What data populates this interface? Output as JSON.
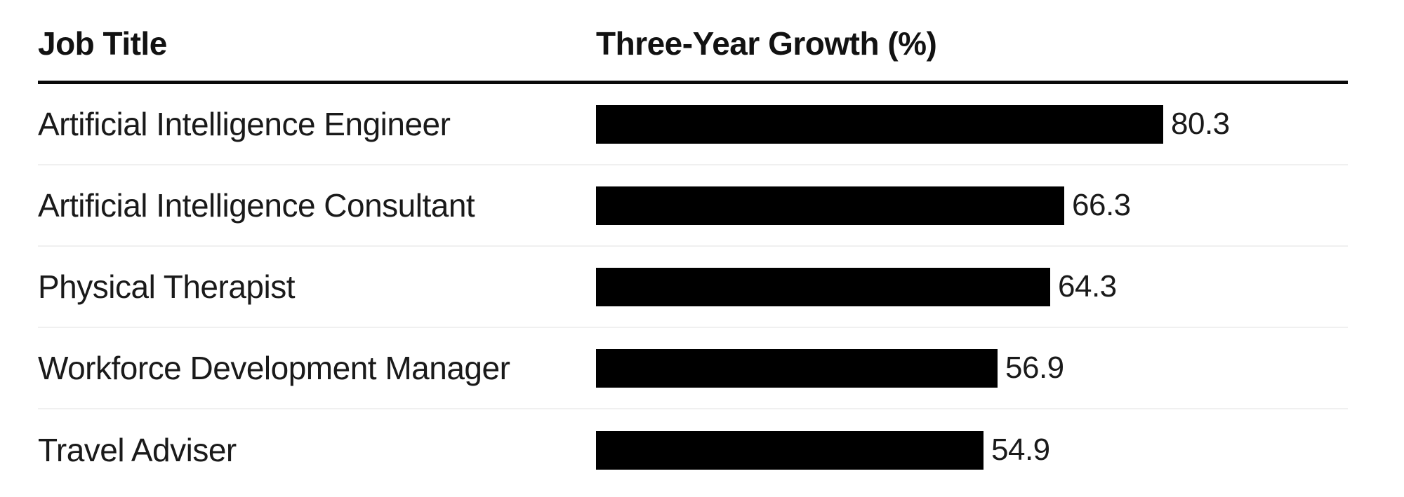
{
  "table": {
    "col1_header": "Job Title",
    "col2_header": "Three-Year Growth (%)"
  },
  "colors": {
    "bar": "#000000",
    "text": "#1a1a1a",
    "header_text": "#121212",
    "header_rule": "#0a0a0a",
    "row_separator": "#f0f0f0",
    "background": "#ffffff"
  },
  "chart_data": {
    "type": "bar",
    "orientation": "horizontal",
    "title": "",
    "xlabel": "Three-Year Growth (%)",
    "ylabel": "Job Title",
    "categories": [
      "Artificial Intelligence Engineer",
      "Artificial Intelligence Consultant",
      "Physical Therapist",
      "Workforce Development Manager",
      "Travel Adviser"
    ],
    "values": [
      80.3,
      66.3,
      64.3,
      56.9,
      54.9
    ],
    "value_labels": [
      "80.3",
      "66.3",
      "64.3",
      "56.9",
      "54.9"
    ],
    "xlim": [
      0,
      106.5
    ],
    "grid": false,
    "legend": false,
    "bar_color": "#000000",
    "value_label_position": "right-of-bar"
  }
}
